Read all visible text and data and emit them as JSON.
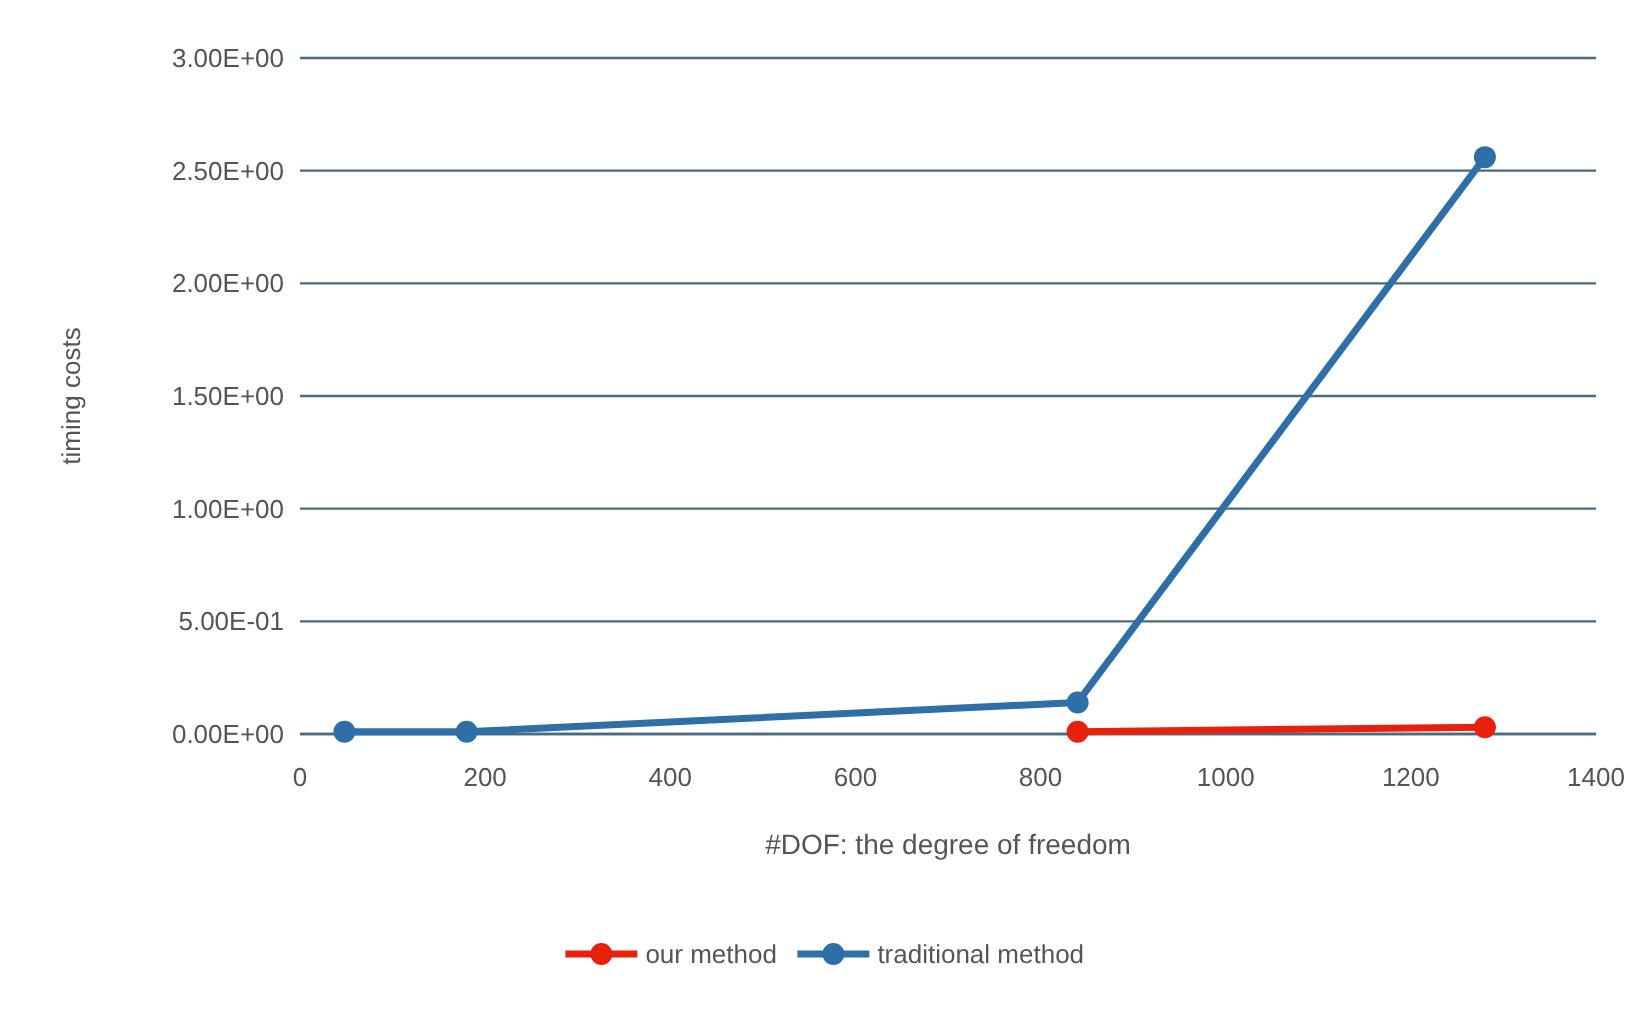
{
  "chart_data": {
    "type": "line",
    "xlabel": "#DOF: the degree of freedom",
    "ylabel": "timing costs",
    "xlim": [
      0,
      1400
    ],
    "xticks": [
      0,
      200,
      400,
      600,
      800,
      1000,
      1200,
      1400
    ],
    "ylim": [
      0,
      3
    ],
    "yticks": [
      {
        "value": 0,
        "label": "0.00E+00"
      },
      {
        "value": 0.5,
        "label": "5.00E-01"
      },
      {
        "value": 1,
        "label": "1.00E+00"
      },
      {
        "value": 1.5,
        "label": "1.50E+00"
      },
      {
        "value": 2,
        "label": "2.00E+00"
      },
      {
        "value": 2.5,
        "label": "2.50E+00"
      },
      {
        "value": 3,
        "label": "3.00E+00"
      }
    ],
    "grid": "y",
    "legend": "bottom",
    "marker": "circle",
    "line_style": "solid",
    "x": [
      48,
      180,
      840,
      1280
    ],
    "series": [
      {
        "name": "our method",
        "color": "#e8200c",
        "values": [
          null,
          null,
          0.01,
          0.03
        ]
      },
      {
        "name": "traditional method",
        "color": "#2e6fa7",
        "values": [
          0.01,
          0.01,
          0.14,
          2.56
        ]
      }
    ]
  }
}
